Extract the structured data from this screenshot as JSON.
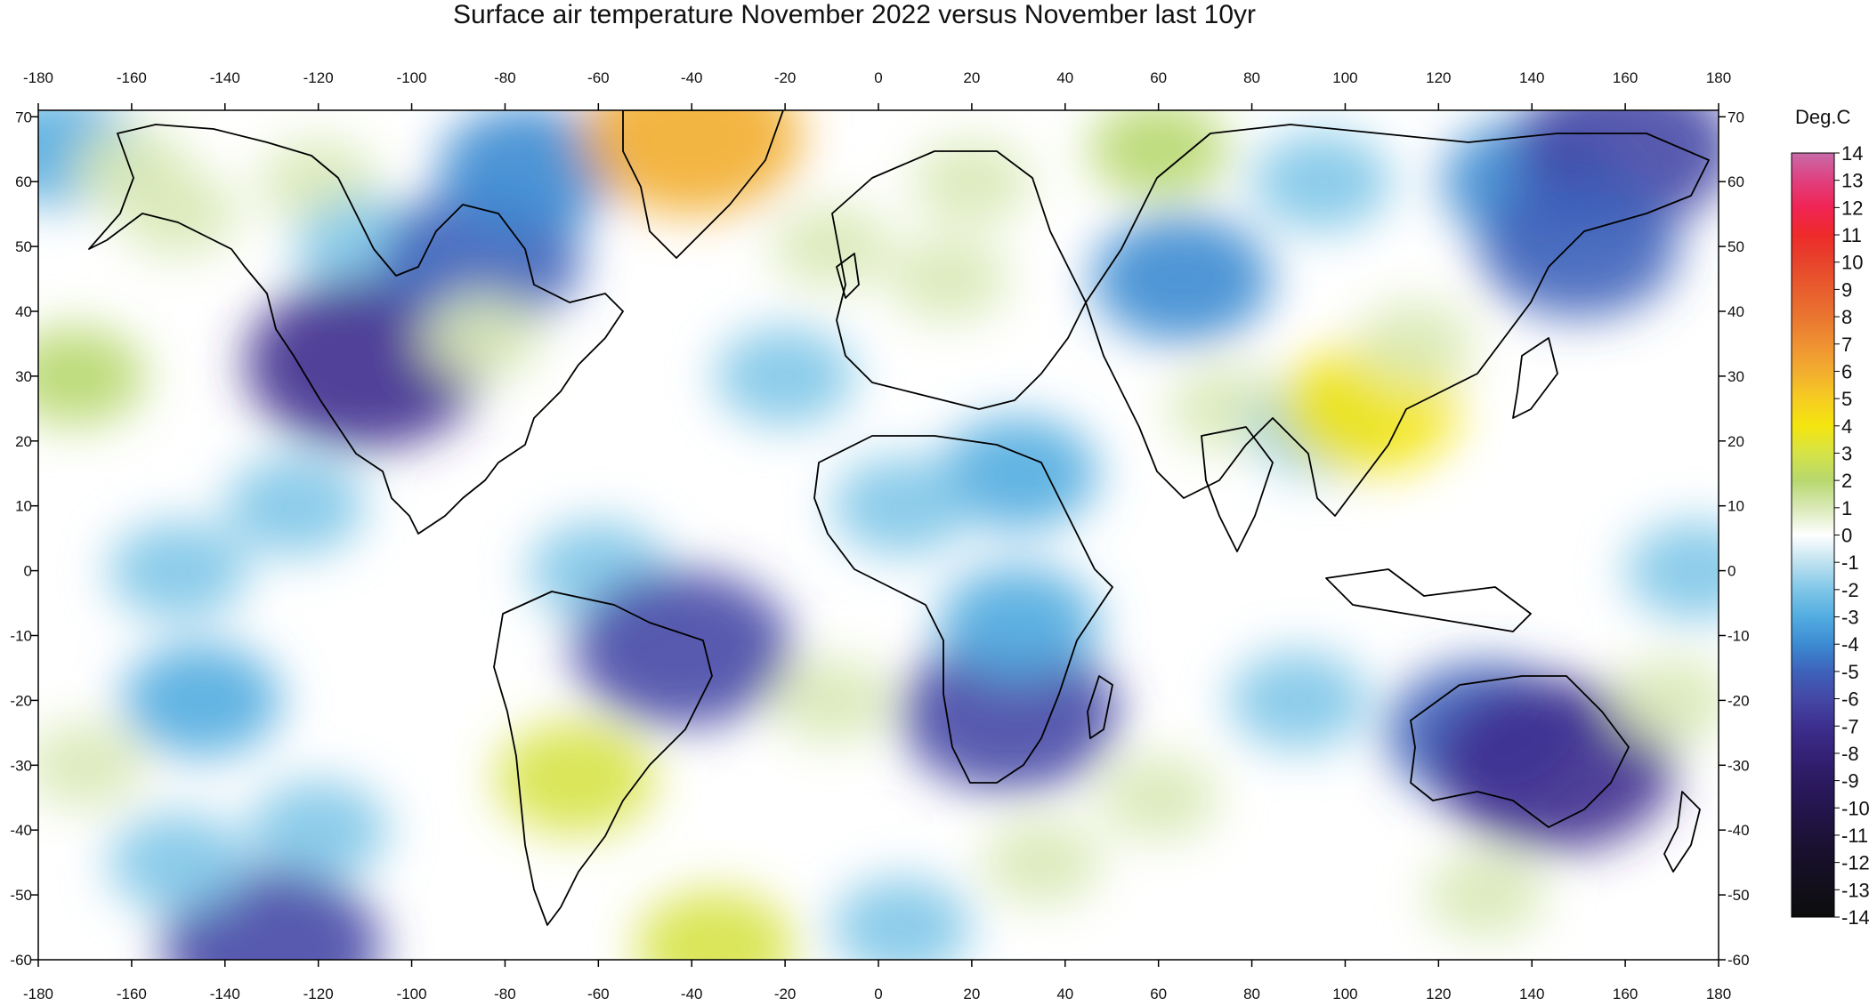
{
  "title": "Surface air temperature November 2022 versus November last 10yr",
  "colorbar": {
    "unit": "Deg.C",
    "min": -14,
    "max": 14,
    "levels": [
      14,
      13,
      12,
      11,
      10,
      9,
      8,
      7,
      6,
      5,
      4,
      3,
      2,
      1,
      0,
      -1,
      -2,
      -3,
      -4,
      -5,
      -6,
      -7,
      -8,
      -9,
      -10,
      -11,
      -12,
      -13,
      -14
    ],
    "labels": [
      "14",
      "13",
      "12",
      "11",
      "10",
      "9",
      "8",
      "7",
      "6",
      "5",
      "4",
      "3",
      "2",
      "1",
      "0",
      "-1",
      "-2",
      "-3",
      "-4",
      "-5",
      "-6",
      "-7",
      "-8",
      "-9",
      "-10",
      "-11",
      "-12",
      "-13",
      "-14"
    ],
    "colors": {
      "14": "#c86aa8",
      "13": "#e0407f",
      "12": "#f02454",
      "11": "#ee2a2a",
      "10": "#e7442c",
      "9": "#e85d2d",
      "8": "#ea7530",
      "7": "#ef9132",
      "6": "#f2ad2f",
      "5": "#f6cc22",
      "4": "#f4e50f",
      "3": "#d6e346",
      "2": "#b7d86e",
      "1": "#d9e9b6",
      "0": "#ffffff",
      "-1": "#bfe2f0",
      "-2": "#7fc6e8",
      "-3": "#52ace0",
      "-4": "#3c8bd2",
      "-5": "#3d62ba",
      "-6": "#4548a6",
      "-7": "#3d2f8e",
      "-8": "#342277",
      "-9": "#2c1a61",
      "-10": "#24154d",
      "-11": "#1d1239",
      "-12": "#160f27",
      "-13": "#120f1a",
      "-14": "#0c0c0c"
    }
  },
  "axes": {
    "lon_ticks": [
      "-180",
      "-160",
      "-140",
      "-120",
      "-100",
      "-80",
      "-60",
      "-40",
      "-20",
      "0",
      "20",
      "40",
      "60",
      "80",
      "100",
      "120",
      "140",
      "160",
      "180"
    ],
    "lat_ticks": [
      "70",
      "60",
      "50",
      "40",
      "30",
      "20",
      "10",
      "0",
      "-10",
      "-20",
      "-30",
      "-40",
      "-50",
      "-60"
    ],
    "lon_range": [
      -180,
      180
    ],
    "lat_range": [
      -60,
      71
    ]
  },
  "anomaly_field": [
    {
      "lon": -175,
      "lat": 65,
      "value": -3
    },
    {
      "lon": -160,
      "lat": 62,
      "value": 1
    },
    {
      "lon": -150,
      "lat": 55,
      "value": 1
    },
    {
      "lon": -120,
      "lat": 60,
      "value": 1
    },
    {
      "lon": -110,
      "lat": 50,
      "value": -2
    },
    {
      "lon": -110,
      "lat": 32,
      "value": -7
    },
    {
      "lon": -125,
      "lat": 10,
      "value": -2
    },
    {
      "lon": -172,
      "lat": 30,
      "value": 2
    },
    {
      "lon": -150,
      "lat": 0,
      "value": -2
    },
    {
      "lon": -145,
      "lat": -20,
      "value": -3
    },
    {
      "lon": -170,
      "lat": -30,
      "value": 1
    },
    {
      "lon": -120,
      "lat": -40,
      "value": -2
    },
    {
      "lon": -130,
      "lat": -58,
      "value": -6
    },
    {
      "lon": -85,
      "lat": 48,
      "value": -5
    },
    {
      "lon": -75,
      "lat": 62,
      "value": -4
    },
    {
      "lon": -85,
      "lat": 36,
      "value": 1
    },
    {
      "lon": -60,
      "lat": 0,
      "value": -2
    },
    {
      "lon": -42,
      "lat": -12,
      "value": -6
    },
    {
      "lon": -65,
      "lat": -32,
      "value": 3
    },
    {
      "lon": -40,
      "lat": 67,
      "value": 6
    },
    {
      "lon": -35,
      "lat": -58,
      "value": 3
    },
    {
      "lon": -20,
      "lat": 30,
      "value": -2
    },
    {
      "lon": -10,
      "lat": 50,
      "value": 1
    },
    {
      "lon": -10,
      "lat": -20,
      "value": 1
    },
    {
      "lon": 20,
      "lat": 60,
      "value": 1
    },
    {
      "lon": 15,
      "lat": 45,
      "value": 1
    },
    {
      "lon": 30,
      "lat": 15,
      "value": -3
    },
    {
      "lon": 5,
      "lat": 10,
      "value": -2
    },
    {
      "lon": 28,
      "lat": -22,
      "value": -6
    },
    {
      "lon": 30,
      "lat": -8,
      "value": -3
    },
    {
      "lon": 65,
      "lat": 45,
      "value": -4
    },
    {
      "lon": 60,
      "lat": 65,
      "value": 2
    },
    {
      "lon": 75,
      "lat": 25,
      "value": 1
    },
    {
      "lon": 95,
      "lat": 22,
      "value": -2
    },
    {
      "lon": 105,
      "lat": 25,
      "value": 4
    },
    {
      "lon": 115,
      "lat": 35,
      "value": 1
    },
    {
      "lon": 140,
      "lat": 60,
      "value": -4
    },
    {
      "lon": 160,
      "lat": 65,
      "value": -6
    },
    {
      "lon": 150,
      "lat": 50,
      "value": -5
    },
    {
      "lon": 130,
      "lat": -25,
      "value": -5
    },
    {
      "lon": 145,
      "lat": -30,
      "value": -7
    },
    {
      "lon": 90,
      "lat": -20,
      "value": -2
    },
    {
      "lon": 60,
      "lat": -35,
      "value": 1
    },
    {
      "lon": 170,
      "lat": -20,
      "value": 1
    },
    {
      "lon": 175,
      "lat": 0,
      "value": -2
    },
    {
      "lon": 5,
      "lat": -55,
      "value": -2
    },
    {
      "lon": 130,
      "lat": -50,
      "value": 1
    },
    {
      "lon": 35,
      "lat": -45,
      "value": 1
    },
    {
      "lon": -150,
      "lat": -45,
      "value": -2
    },
    {
      "lon": 95,
      "lat": 60,
      "value": -2
    }
  ]
}
